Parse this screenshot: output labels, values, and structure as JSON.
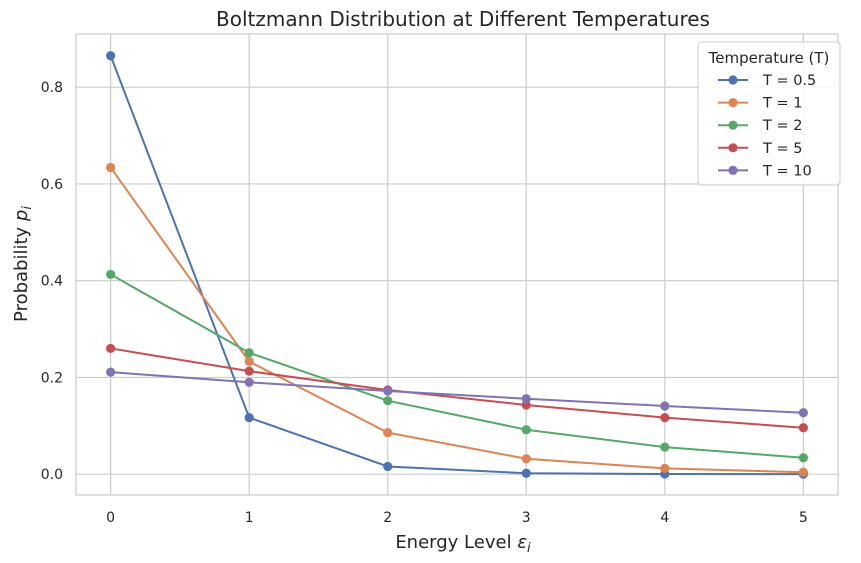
{
  "chart_data": {
    "type": "line",
    "title": "Boltzmann Distribution at Different Temperatures",
    "xlabel": "Energy Level",
    "xlabel_symbol": "ε",
    "xlabel_subscript": "i",
    "ylabel": "Probability",
    "ylabel_symbol": "p",
    "ylabel_subscript": "i",
    "x": [
      0,
      1,
      2,
      3,
      4,
      5
    ],
    "xticks": [
      "0",
      "1",
      "2",
      "3",
      "4",
      "5"
    ],
    "yticks": [
      "0.0",
      "0.2",
      "0.4",
      "0.6",
      "0.8"
    ],
    "xlim": [
      -0.25,
      5.25
    ],
    "ylim": [
      -0.043,
      0.91
    ],
    "grid": true,
    "legend": {
      "title": "Temperature (T)",
      "placement": "top-right"
    },
    "series": [
      {
        "name": "T = 0.5",
        "color": "#4c72b0",
        "values": [
          0.865,
          0.117,
          0.016,
          0.002,
          0.0003,
          4e-05
        ]
      },
      {
        "name": "T = 1",
        "color": "#dd8452",
        "values": [
          0.634,
          0.233,
          0.086,
          0.032,
          0.012,
          0.004
        ]
      },
      {
        "name": "T = 2",
        "color": "#55a868",
        "values": [
          0.413,
          0.251,
          0.152,
          0.092,
          0.056,
          0.034
        ]
      },
      {
        "name": "T = 5",
        "color": "#c44e52",
        "values": [
          0.26,
          0.213,
          0.174,
          0.143,
          0.117,
          0.096
        ]
      },
      {
        "name": "T = 10",
        "color": "#8172b3",
        "values": [
          0.211,
          0.19,
          0.172,
          0.156,
          0.141,
          0.127
        ]
      }
    ]
  }
}
